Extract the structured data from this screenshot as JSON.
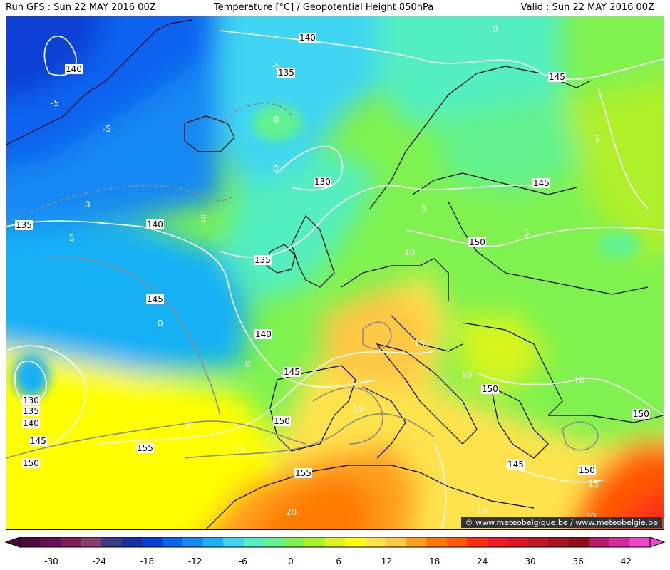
{
  "header": {
    "run": "Run GFS : Sun 22 MAY 2016 00Z",
    "title": "Temperature [°C] / Geopotential Height 850hPa",
    "valid": "Valid : Sun 22 MAY 2016 00Z"
  },
  "credit": "© www.meteobelgique.be / www.meteobelgie.be",
  "legend": {
    "ticks": [
      "-30",
      "-24",
      "-18",
      "-12",
      "-6",
      "0",
      "6",
      "12",
      "18",
      "24",
      "30",
      "36",
      "42"
    ],
    "colors": [
      "#4a0a3e",
      "#6a0f55",
      "#7d1e5a",
      "#8a3d6c",
      "#3c3c86",
      "#1a2f9e",
      "#0b3fd4",
      "#0b63ef",
      "#1788f3",
      "#19b0f5",
      "#3fd5f2",
      "#52efc0",
      "#62f28f",
      "#7ff24f",
      "#aef02b",
      "#d8f51c",
      "#ffff00",
      "#ffe34d",
      "#ffc845",
      "#ff9f1a",
      "#ff7a00",
      "#ff5a00",
      "#ff2d14",
      "#ee1c24",
      "#d9172a",
      "#c01627",
      "#a8131f",
      "#8e0f1a",
      "#b81c6b",
      "#d62a9a",
      "#ee46c9"
    ]
  },
  "geopotential_labels": [
    {
      "text": "140"
    },
    {
      "text": "140"
    },
    {
      "text": "135"
    },
    {
      "text": "145"
    },
    {
      "text": "130"
    },
    {
      "text": "145"
    },
    {
      "text": "135"
    },
    {
      "text": "140"
    },
    {
      "text": "150"
    },
    {
      "text": "135"
    },
    {
      "text": "145"
    },
    {
      "text": "140"
    },
    {
      "text": "145"
    },
    {
      "text": "130"
    },
    {
      "text": "135"
    },
    {
      "text": "140"
    },
    {
      "text": "145"
    },
    {
      "text": "150"
    },
    {
      "text": "155"
    },
    {
      "text": "150"
    },
    {
      "text": "150"
    },
    {
      "text": "155"
    },
    {
      "text": "145"
    },
    {
      "text": "150"
    },
    {
      "text": "150"
    }
  ],
  "temperature_labels": [
    {
      "text": "-5"
    },
    {
      "text": "-5"
    },
    {
      "text": "-5"
    },
    {
      "text": "0"
    },
    {
      "text": "0"
    },
    {
      "text": "0"
    },
    {
      "text": "0"
    },
    {
      "text": "-5"
    },
    {
      "text": "5"
    },
    {
      "text": "0"
    },
    {
      "text": "0"
    },
    {
      "text": "5"
    },
    {
      "text": "10"
    },
    {
      "text": "5"
    },
    {
      "text": "5"
    },
    {
      "text": "10"
    },
    {
      "text": "10"
    },
    {
      "text": "10"
    },
    {
      "text": "15"
    },
    {
      "text": "5"
    },
    {
      "text": "10"
    },
    {
      "text": "20"
    },
    {
      "text": "15"
    },
    {
      "text": "10"
    },
    {
      "text": "20"
    }
  ]
}
